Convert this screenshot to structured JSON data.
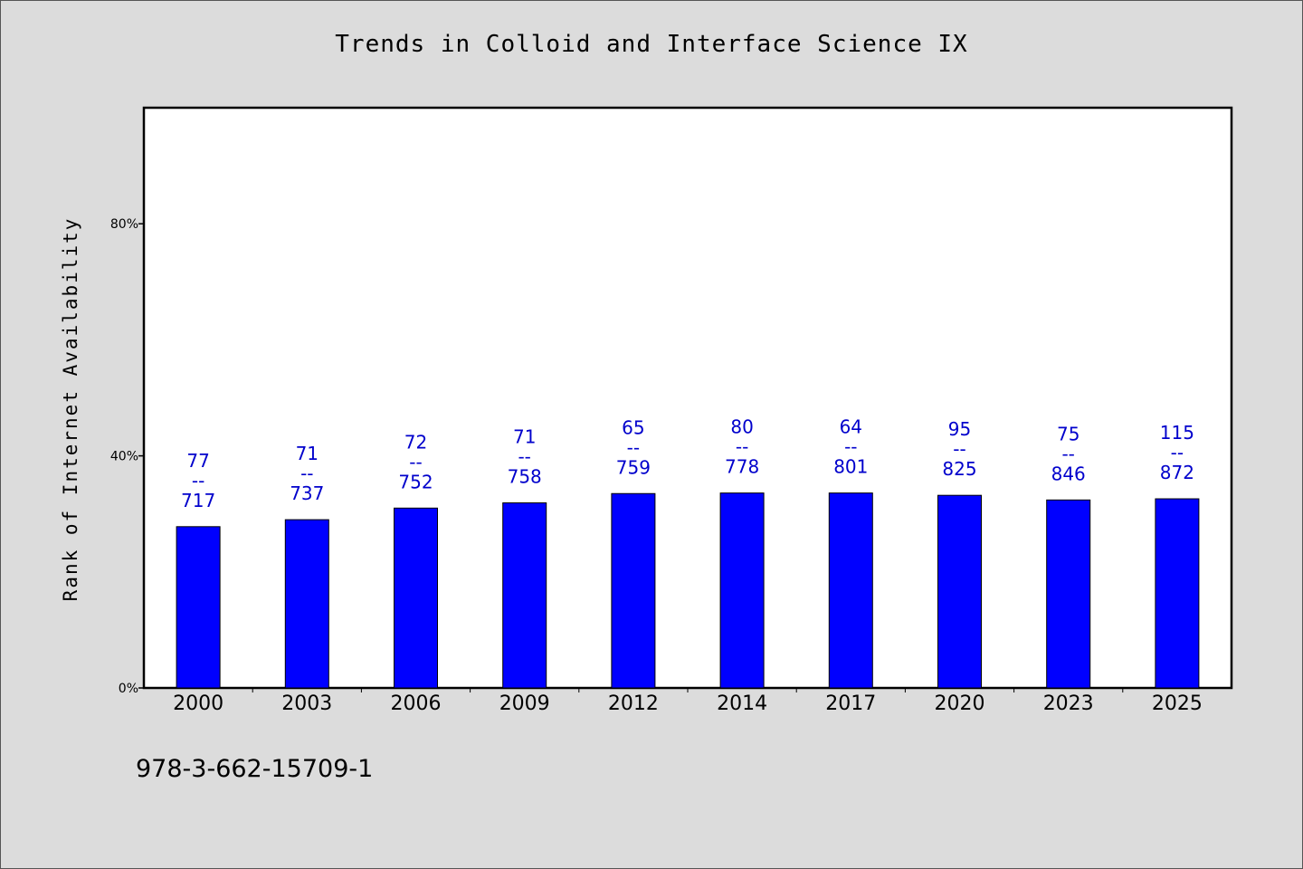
{
  "chart_data": {
    "type": "bar",
    "title": "Trends in Colloid and Interface Science IX",
    "ylabel": "Rank of Internet Availability",
    "xlabel": "",
    "categories": [
      "2000",
      "2003",
      "2006",
      "2009",
      "2012",
      "2014",
      "2017",
      "2020",
      "2023",
      "2025"
    ],
    "values": [
      27.8,
      29.0,
      31.0,
      31.9,
      33.5,
      33.6,
      33.6,
      33.2,
      32.4,
      32.6
    ],
    "labels_top": [
      "77",
      "71",
      "72",
      "71",
      "65",
      "80",
      "64",
      "95",
      "75",
      "115"
    ],
    "labels_bottom": [
      "717",
      "737",
      "752",
      "758",
      "759",
      "778",
      "801",
      "825",
      "846",
      "872"
    ],
    "label_separator": "--",
    "ylim": [
      0,
      100
    ],
    "yticks": [
      0,
      40,
      80
    ],
    "ytick_labels": [
      "0%",
      "40%",
      "80%"
    ],
    "grid": false,
    "colors": {
      "bar": "#0000ff",
      "bar_label": "#0000cc",
      "plot_background": "#ffffff",
      "page_background": "#dcdcdc"
    }
  },
  "footer": {
    "isbn": "978-3-662-15709-1"
  }
}
